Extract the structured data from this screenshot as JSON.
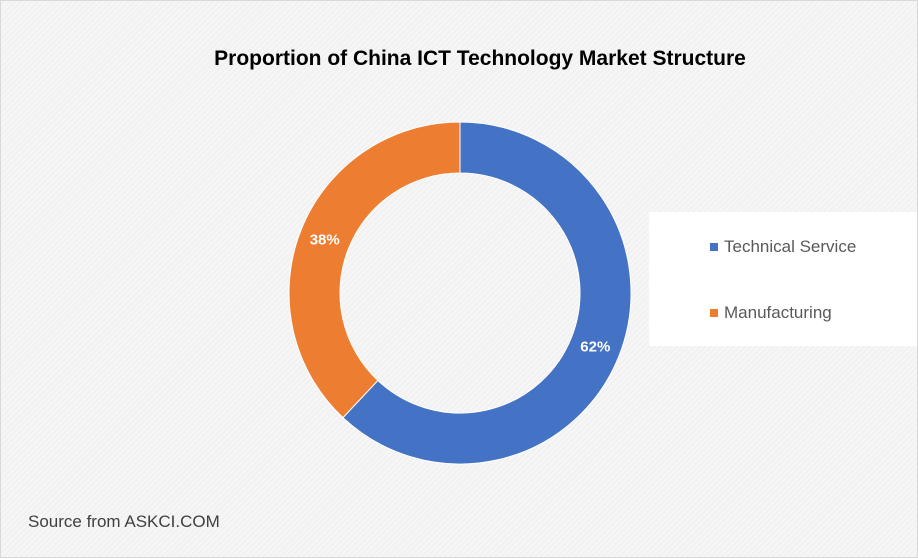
{
  "chart_data": {
    "type": "pie",
    "variant": "donut",
    "title": "Proportion of China ICT Technology Market Structure",
    "categories": [
      "Technical Service",
      "Manufacturing"
    ],
    "values": [
      62,
      38
    ],
    "labels": [
      "62%",
      "38%"
    ],
    "colors": [
      "#4472c4",
      "#ed7d31"
    ],
    "legend_position": "right"
  },
  "source": "Source from ASKCI.COM"
}
